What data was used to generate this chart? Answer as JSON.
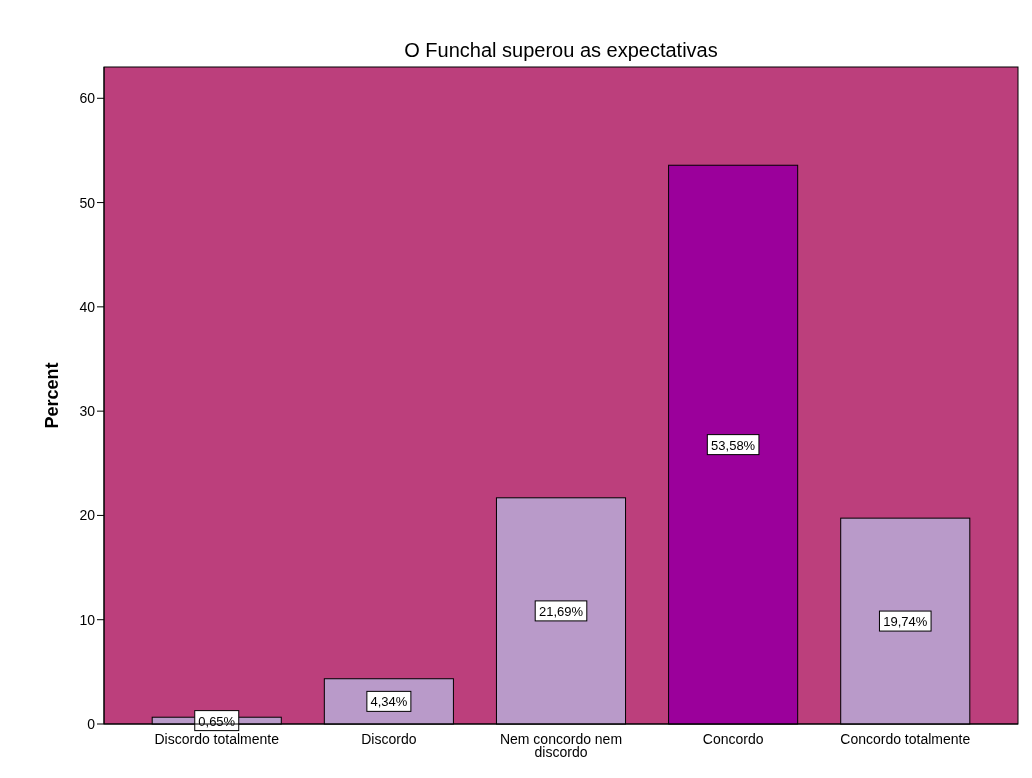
{
  "chart_data": {
    "type": "bar",
    "title": "O Funchal superou as expectativas",
    "ylabel": "Percent",
    "categories": [
      "Discordo totalmente",
      "Discordo",
      "Nem concordo nem discordo",
      "Concordo",
      "Concordo totalmente"
    ],
    "values": [
      0.65,
      4.34,
      21.69,
      53.58,
      19.74
    ],
    "colors": [
      "#b99ac9",
      "#b99ac9",
      "#b99ac9",
      "#9b009b",
      "#b99ac9"
    ],
    "value_labels": [
      "0,65%",
      "4,34%",
      "21,69%",
      "53,58%",
      "19,74%"
    ],
    "ylim": [
      0,
      63
    ],
    "yticks": [
      0,
      10,
      20,
      30,
      40,
      50,
      60
    ]
  }
}
